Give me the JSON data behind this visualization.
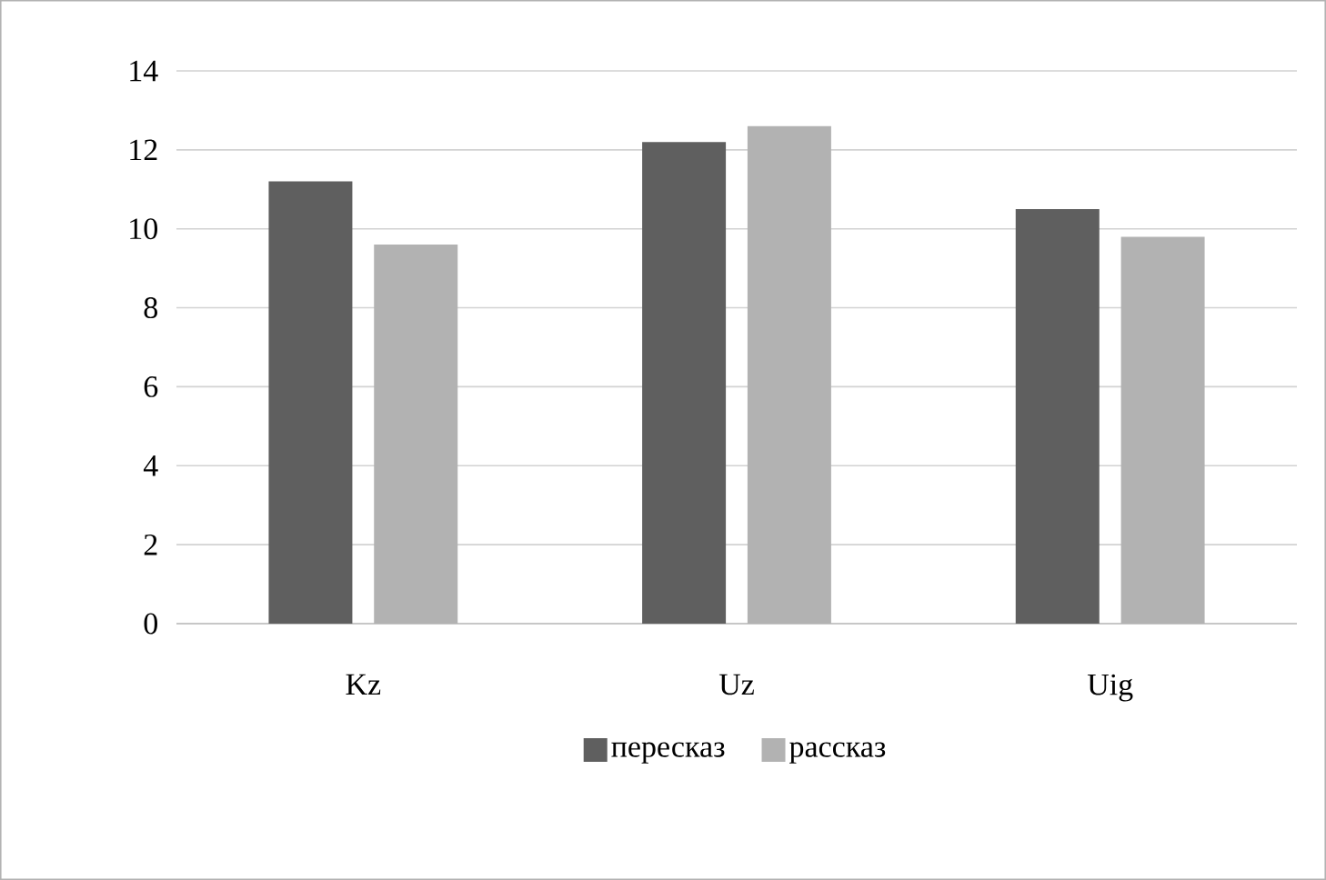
{
  "chart_data": {
    "type": "bar",
    "categories": [
      "Kz",
      "Uz",
      "Uig"
    ],
    "series": [
      {
        "name": "пересказ",
        "color": "#5f5f5f",
        "values": [
          11.2,
          12.2,
          10.5
        ]
      },
      {
        "name": "рассказ",
        "color": "#b2b2b2",
        "values": [
          9.6,
          12.6,
          9.8
        ]
      }
    ],
    "ylim": [
      0,
      14
    ],
    "yticks": [
      0,
      2,
      4,
      6,
      8,
      10,
      12,
      14
    ],
    "grid": "y",
    "legend": "bottom"
  }
}
